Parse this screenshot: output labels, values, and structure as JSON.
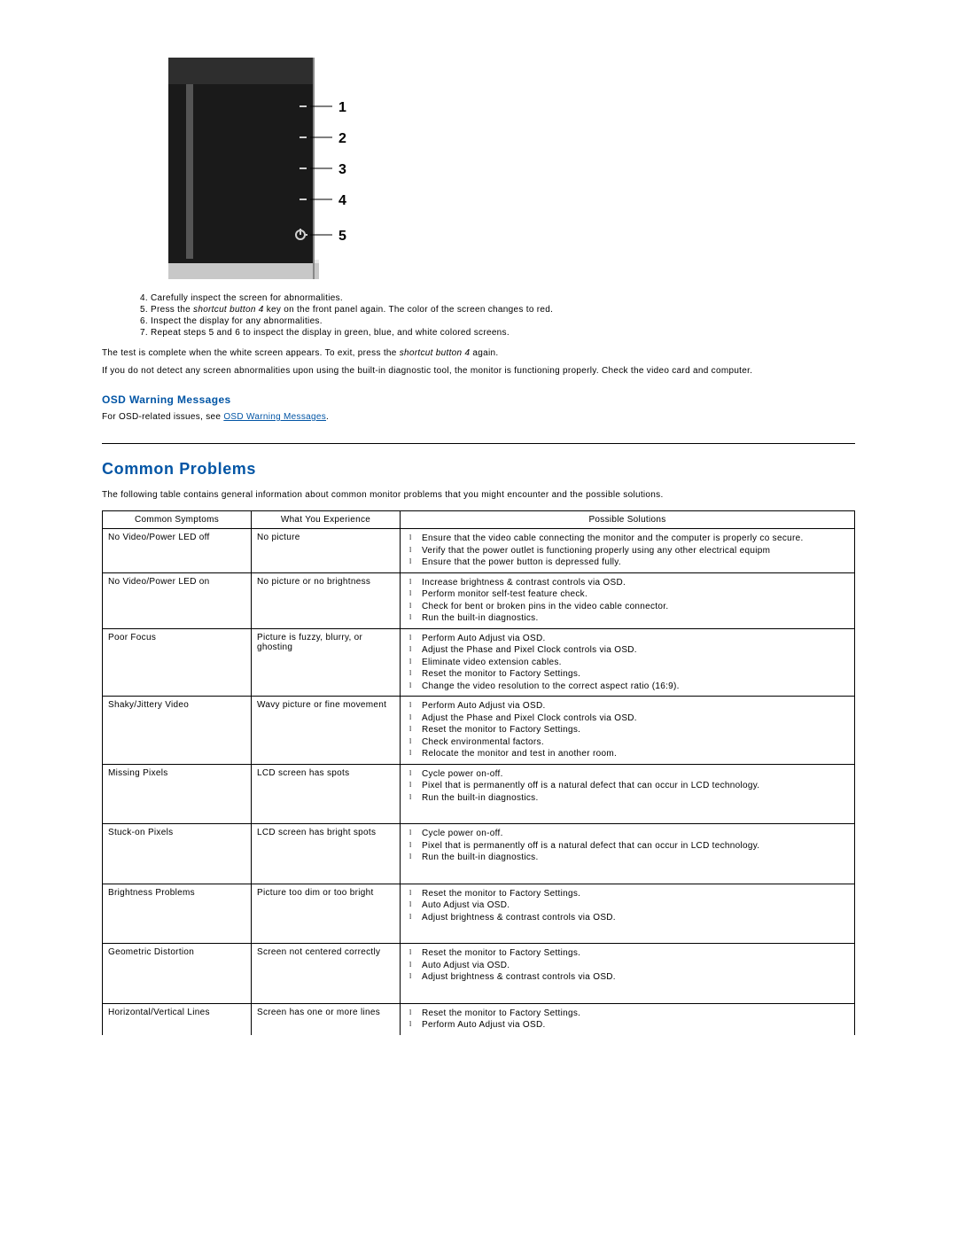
{
  "monitor_labels": [
    "1",
    "2",
    "3",
    "4",
    "5"
  ],
  "steps": [
    "Carefully inspect the screen for abnormalities.",
    "Press the <span class=\"italic\">shortcut button 4</span> key on the front panel again. The color of the screen changes to red.",
    "Inspect the display for any abnormalities.",
    "Repeat steps 5 and 6 to inspect the display in green, blue, and white colored screens."
  ],
  "para_test_complete_pre": "The test is complete when the white screen appears. To exit, press the ",
  "para_test_complete_btn": "shortcut button 4",
  "para_test_complete_post": " again.",
  "para_no_abnormality": "If you do not detect any screen abnormalities upon using the built-in diagnostic tool, the monitor is functioning properly. Check the video card and computer.",
  "osd_heading": "OSD Warning Messages",
  "osd_text_pre": "For OSD-related issues, see ",
  "osd_link": "OSD Warning Messages",
  "osd_text_post": ".",
  "common_problems_heading": "Common Problems",
  "common_problems_intro": "The following table contains general information about common monitor problems that you might encounter and the possible solutions.",
  "table": {
    "headers": [
      "Common Symptoms",
      "What You Experience",
      "Possible Solutions"
    ],
    "rows": [
      {
        "symptom": "No Video/Power LED off",
        "experience": "No picture",
        "solutions": [
          "Ensure that the video cable connecting the monitor and the computer is properly co secure.",
          "Verify that the power outlet is functioning properly using any other electrical equipm",
          "Ensure that the power button is depressed fully."
        ]
      },
      {
        "symptom": "No Video/Power LED on",
        "experience": "No picture or no brightness",
        "solutions": [
          "Increase brightness & contrast controls via OSD.",
          "Perform monitor self-test feature check.",
          "Check for bent or broken pins in the video cable connector.",
          "Run the built-in diagnostics."
        ]
      },
      {
        "symptom": "Poor Focus",
        "experience": "Picture is fuzzy, blurry, or ghosting",
        "solutions": [
          "Perform Auto Adjust via OSD.",
          "Adjust the Phase and Pixel Clock controls via OSD.",
          "Eliminate video extension cables.",
          "Reset the monitor to Factory Settings.",
          "Change the video resolution to the correct aspect ratio (16:9)."
        ]
      },
      {
        "symptom": "Shaky/Jittery Video",
        "experience": "Wavy picture or fine movement",
        "solutions": [
          "Perform Auto Adjust via OSD.",
          "Adjust the Phase and Pixel Clock controls via OSD.",
          "Reset the monitor to Factory Settings.",
          "Check environmental factors.",
          "Relocate the monitor and test in another room."
        ]
      },
      {
        "symptom": "Missing Pixels",
        "experience": "LCD screen has spots",
        "solutions": [
          "Cycle power on-off.",
          "Pixel that is permanently off is a natural defect that can occur in LCD technology.",
          "Run the built-in diagnostics."
        ],
        "short": true
      },
      {
        "symptom": "Stuck-on Pixels",
        "experience": "LCD screen has bright spots",
        "solutions": [
          "Cycle power on-off.",
          "Pixel that is permanently off is a natural defect that can occur in LCD technology.",
          "Run the built-in diagnostics."
        ],
        "short": true
      },
      {
        "symptom": "Brightness Problems",
        "experience": "Picture too dim or too bright",
        "solutions": [
          "Reset the monitor to Factory Settings.",
          "Auto Adjust via OSD.",
          "Adjust brightness & contrast controls via OSD."
        ],
        "short": true
      },
      {
        "symptom": "Geometric Distortion",
        "experience": "Screen not centered correctly",
        "solutions": [
          "Reset the monitor to Factory Settings.",
          "Auto Adjust via OSD.",
          "Adjust brightness & contrast controls via OSD."
        ],
        "short": true
      },
      {
        "symptom": "Horizontal/Vertical Lines",
        "experience": "Screen has one or more lines",
        "solutions": [
          "Reset the monitor to Factory Settings.",
          "Perform Auto Adjust via OSD."
        ]
      }
    ]
  }
}
